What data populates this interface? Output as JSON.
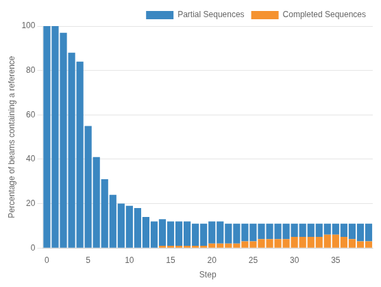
{
  "chart_data": {
    "type": "bar",
    "stacked": true,
    "x": [
      0,
      1,
      2,
      3,
      4,
      5,
      6,
      7,
      8,
      9,
      10,
      11,
      12,
      13,
      14,
      15,
      16,
      17,
      18,
      19,
      20,
      21,
      22,
      23,
      24,
      25,
      26,
      27,
      28,
      29,
      30,
      31,
      32,
      33,
      34,
      35,
      36,
      37,
      38,
      39
    ],
    "series": [
      {
        "name": "Partial Sequences",
        "color": "#3b87c1",
        "values": [
          100,
          100,
          97,
          88,
          84,
          55,
          41,
          31,
          24,
          20,
          19,
          18,
          14,
          12,
          12,
          11,
          11,
          11,
          10,
          10,
          10,
          10,
          9,
          9,
          8,
          8,
          7,
          7,
          7,
          7,
          6,
          6,
          6,
          6,
          5,
          5,
          6,
          7,
          8,
          8
        ]
      },
      {
        "name": "Completed Sequences",
        "color": "#f5922f",
        "values": [
          0,
          0,
          0,
          0,
          0,
          0,
          0,
          0,
          0,
          0,
          0,
          0,
          0,
          0,
          1,
          1,
          1,
          1,
          1,
          1,
          2,
          2,
          2,
          2,
          3,
          3,
          4,
          4,
          4,
          4,
          5,
          5,
          5,
          5,
          6,
          6,
          5,
          4,
          3,
          3
        ]
      }
    ],
    "xlabel": "Step",
    "ylabel": "Percentage of beams containing a reference",
    "xlim": [
      -0.5,
      39.5
    ],
    "xticks": [
      0,
      5,
      10,
      15,
      20,
      25,
      30,
      35
    ],
    "ylim": [
      0,
      100
    ],
    "yticks": [
      0,
      20,
      40,
      60,
      80,
      100
    ],
    "grid": true,
    "legend": "upper right"
  }
}
